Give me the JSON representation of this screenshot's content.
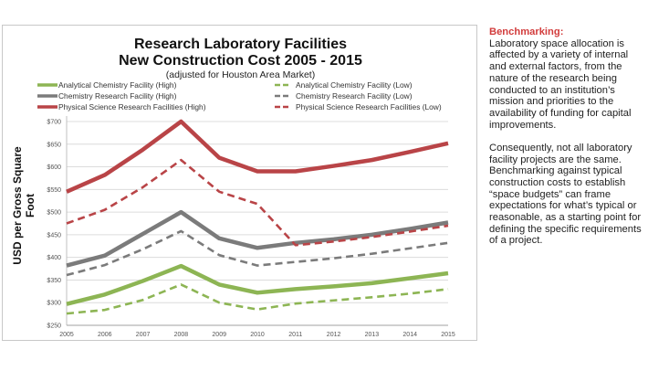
{
  "chart_data": {
    "type": "line",
    "title": "Research Laboratory Facilities",
    "title_line2": "New Construction Cost  2005 - 2015",
    "subtitle": "(adjusted for Houston Area Market)",
    "xlabel": "",
    "ylabel": "USD  per Gross Square Foot",
    "x": [
      2005,
      2006,
      2007,
      2008,
      2009,
      2010,
      2011,
      2012,
      2013,
      2014,
      2015
    ],
    "x_tick_labels": [
      "2005",
      "2006",
      "2007",
      "2008",
      "2009",
      "2010",
      "2011",
      "2012",
      "2013",
      "2014",
      "2015"
    ],
    "ylim": [
      250,
      700
    ],
    "y_ticks": [
      250,
      300,
      350,
      400,
      450,
      500,
      550,
      600,
      650,
      700
    ],
    "y_tick_labels": [
      "$250",
      "$300",
      "$350",
      "$400",
      "$450",
      "$500",
      "$550",
      "$600",
      "$650",
      "$700"
    ],
    "grid": true,
    "legend_placement": "top",
    "series": [
      {
        "name": "Analytical Chemistry Facility (High)",
        "color": "#8db554",
        "style": "solid",
        "values": [
          297,
          318,
          348,
          381,
          340,
          322,
          330,
          336,
          343,
          354,
          365
        ]
      },
      {
        "name": "Analytical Chemistry Facility (Low)",
        "color": "#8db554",
        "style": "dashed",
        "values": [
          276,
          284,
          306,
          340,
          300,
          285,
          298,
          305,
          312,
          320,
          330
        ]
      },
      {
        "name": "Chemistry Research Facility (High)",
        "color": "#7b7b7b",
        "style": "solid",
        "values": [
          382,
          404,
          452,
          500,
          442,
          421,
          432,
          440,
          450,
          463,
          477
        ]
      },
      {
        "name": "Chemistry Research Facility (Low)",
        "color": "#7b7b7b",
        "style": "dashed",
        "values": [
          361,
          383,
          418,
          458,
          405,
          382,
          390,
          398,
          408,
          420,
          432
        ]
      },
      {
        "name": "Physical Science Research Facilities (High)",
        "color": "#b94447",
        "style": "solid",
        "values": [
          545,
          582,
          638,
          700,
          620,
          590,
          590,
          602,
          615,
          633,
          652
        ]
      },
      {
        "name": "Physical Science Research Facilities (Low)",
        "color": "#b94447",
        "style": "dashed",
        "values": [
          475,
          505,
          555,
          615,
          545,
          518,
          427,
          435,
          445,
          457,
          470
        ]
      }
    ]
  },
  "sidebar": {
    "heading": "Benchmarking:",
    "paragraphs": [
      "Laboratory space allocation is affected by a variety of internal and external factors, from the nature of the research being conducted to an institution’s mission and priorities to the availability of funding for capital improvements.",
      "Consequently, not all laboratory facility projects are the same. Benchmarking against typical construction costs to establish “space budgets” can frame expectations for what’s typical or reasonable, as a starting point for defining the specific requirements of a project."
    ]
  }
}
